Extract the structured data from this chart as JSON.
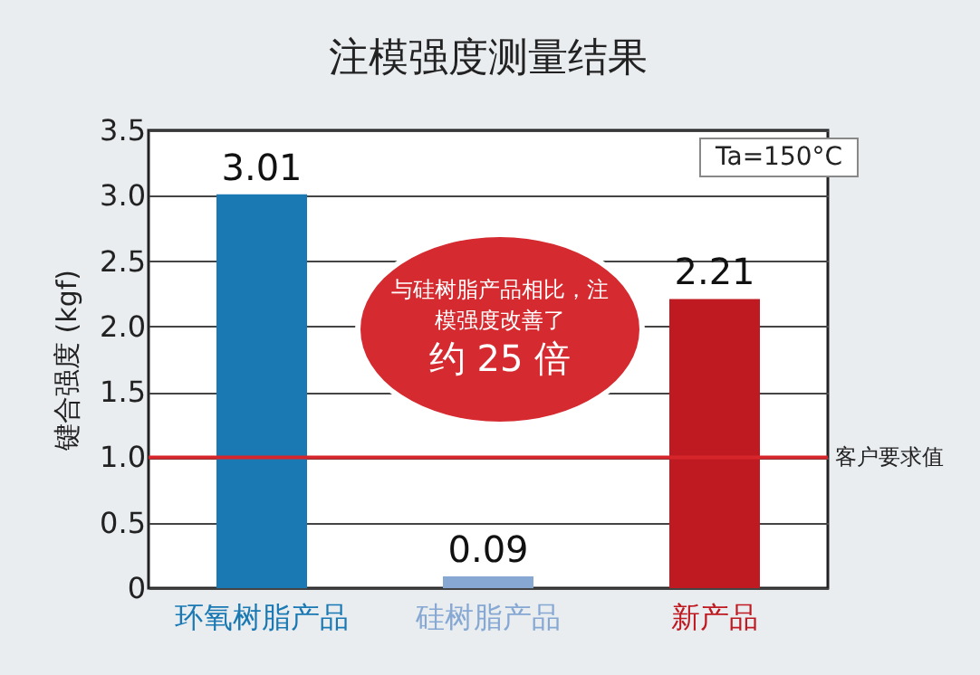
{
  "chart_data": {
    "type": "bar",
    "title": "注模强度测量结果",
    "ylabel": "键合强度 (kgf)",
    "categories": [
      "环氧树脂产品",
      "硅树脂产品",
      "新产品"
    ],
    "values": [
      3.01,
      0.09,
      2.21
    ],
    "colors": [
      "#1a79b3",
      "#86a8d3",
      "#bf1a21"
    ],
    "data_labels": true,
    "ylim": [
      0,
      3.5
    ],
    "yticks": [
      {
        "value": 0,
        "label": "0"
      },
      {
        "value": 0.5,
        "label": "0.5"
      },
      {
        "value": 1,
        "label": "1.0"
      },
      {
        "value": 1.5,
        "label": "1.5"
      },
      {
        "value": 2,
        "label": "2.0"
      },
      {
        "value": 2.5,
        "label": "2.5"
      },
      {
        "value": 3,
        "label": "3.0"
      },
      {
        "value": 3.5,
        "label": "3.5"
      }
    ],
    "grid": "y",
    "ref_lines": [
      {
        "axis": "y",
        "value": 1.0,
        "label": "客户要求值",
        "color": "#d7262b"
      }
    ],
    "annotations": [
      "Ta=150°C",
      "与硅树脂产品相比，注模强度改善了",
      "约 25 倍"
    ]
  }
}
